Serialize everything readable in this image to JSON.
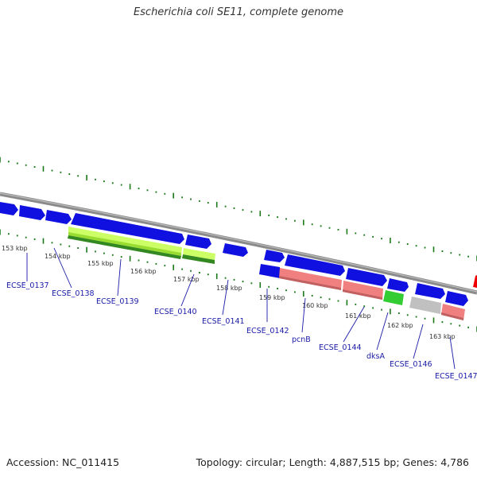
{
  "title": "Escherichia coli SE11, complete genome",
  "accession": "Accession: NC_011415",
  "summary": "Topology: circular; Length: 4,887,515 bp; Genes: 4,786",
  "colors": {
    "backbone": "#8a8a8a",
    "cds": "#1010e0",
    "trna_light": "#ccff66",
    "trna_dark": "#44aa22",
    "rrna": "#f08080",
    "gc_green": "#33cc33",
    "pseudo": "#c0c0c0",
    "tick": "#1a7a1a",
    "label": "#1a1aa8"
  },
  "scale_labels": [
    "153 kbp",
    "154 kbp",
    "155 kbp",
    "156 kbp",
    "157 kbp",
    "158 kbp",
    "159 kbp",
    "160 kbp",
    "161 kbp",
    "162 kbp",
    "163 kbp"
  ],
  "gene_labels": [
    "ECSE_0137",
    "ECSE_0138",
    "ECSE_0139",
    "ECSE_0140",
    "ECSE_0141",
    "ECSE_0142",
    "pcnB",
    "ECSE_0144",
    "dksA",
    "ECSE_0146",
    "ECSE_0147"
  ]
}
